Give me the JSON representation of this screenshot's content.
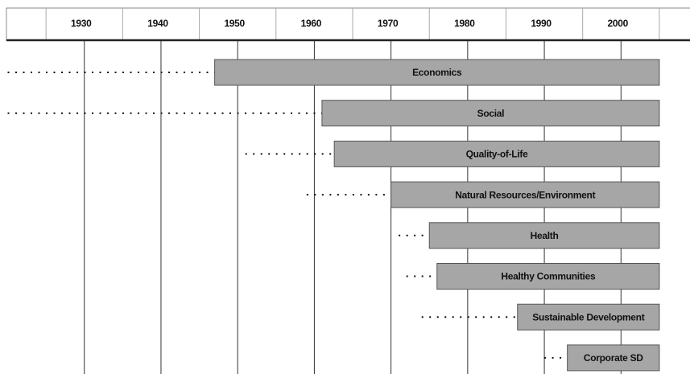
{
  "chart_data": {
    "type": "timeline",
    "xlim": [
      1919,
      2009
    ],
    "xticks": [
      1930,
      1940,
      1950,
      1960,
      1970,
      1980,
      1990,
      2000
    ],
    "grid": true,
    "bar_color": "#a6a6a6",
    "tasks": [
      {
        "label": "Economics",
        "lead_start": 1920,
        "start": 1947,
        "end": 2005
      },
      {
        "label": "Social",
        "lead_start": 1920,
        "start": 1961,
        "end": 2005
      },
      {
        "label": "Quality-of-Life",
        "lead_start": 1951,
        "start": 1962.6,
        "end": 2005
      },
      {
        "label": "Natural Resources/Environment",
        "lead_start": 1959,
        "start": 1970,
        "end": 2005
      },
      {
        "label": "Health",
        "lead_start": 1971,
        "start": 1975,
        "end": 2005
      },
      {
        "label": "Healthy Communities",
        "lead_start": 1972,
        "start": 1976,
        "end": 2005
      },
      {
        "label": "Sustainable Development",
        "lead_start": 1974,
        "start": 1986.5,
        "end": 2005
      },
      {
        "label": "Corporate SD",
        "lead_start": 1990,
        "start": 1993,
        "end": 2005
      }
    ]
  }
}
